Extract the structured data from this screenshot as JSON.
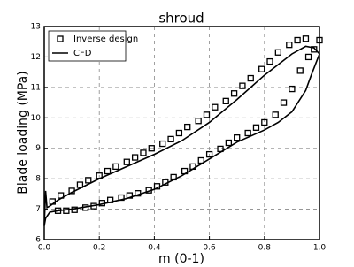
{
  "chart_data": {
    "type": "line",
    "title": "shroud",
    "xlabel": "m (0-1)",
    "ylabel": "Blade loading (MPa)",
    "xlim": [
      0,
      1
    ],
    "ylim": [
      6,
      13
    ],
    "xticks": [
      {
        "value": 0,
        "label": "0.0"
      },
      0.2,
      0.4,
      0.6,
      0.8,
      {
        "value": 1,
        "label": "1.0"
      }
    ],
    "yticks": [
      6,
      7,
      8,
      9,
      10,
      11,
      12,
      13
    ],
    "grid": true,
    "legend": "upper left",
    "series": [
      {
        "name": "Inverse design",
        "color": "#000000",
        "marker": "square",
        "x": [
          0.03,
          0.06,
          0.1,
          0.13,
          0.16,
          0.2,
          0.23,
          0.26,
          0.3,
          0.33,
          0.36,
          0.39,
          0.43,
          0.46,
          0.49,
          0.52,
          0.56,
          0.59,
          0.62,
          0.66,
          0.69,
          0.72,
          0.75,
          0.79,
          0.82,
          0.85,
          0.89,
          0.92,
          0.95,
          0.98,
          1.0,
          0.05,
          0.08,
          0.11,
          0.15,
          0.18,
          0.21,
          0.24,
          0.28,
          0.31,
          0.34,
          0.38,
          0.41,
          0.44,
          0.47,
          0.51,
          0.54,
          0.57,
          0.6,
          0.64,
          0.67,
          0.7,
          0.74,
          0.77,
          0.8,
          0.84,
          0.87,
          0.9,
          0.93,
          0.96
        ],
        "values": [
          7.25,
          7.45,
          7.6,
          7.8,
          7.95,
          8.1,
          8.25,
          8.4,
          8.55,
          8.7,
          8.85,
          9.0,
          9.15,
          9.3,
          9.5,
          9.7,
          9.9,
          10.1,
          10.35,
          10.55,
          10.8,
          11.05,
          11.3,
          11.6,
          11.85,
          12.15,
          12.4,
          12.55,
          12.6,
          12.25,
          12.55,
          6.95,
          6.95,
          6.98,
          7.05,
          7.1,
          7.2,
          7.3,
          7.38,
          7.45,
          7.52,
          7.62,
          7.75,
          7.88,
          8.05,
          8.25,
          8.4,
          8.6,
          8.8,
          8.98,
          9.18,
          9.35,
          9.5,
          9.68,
          9.85,
          10.1,
          10.5,
          10.95,
          11.55,
          12.0
        ]
      },
      {
        "name": "CFD",
        "color": "#000000",
        "x": [
          0,
          0.005,
          0.01,
          0.02,
          0.05,
          0.1,
          0.2,
          0.3,
          0.4,
          0.5,
          0.6,
          0.7,
          0.8,
          0.9,
          0.95,
          0.98,
          1.0,
          0.97,
          0.95,
          0.9,
          0.85,
          0.8,
          0.7,
          0.6,
          0.5,
          0.4,
          0.3,
          0.2,
          0.1,
          0.05,
          0.02,
          0.005,
          0
        ],
        "values": [
          6.45,
          7.6,
          7.05,
          7.1,
          7.3,
          7.55,
          8.0,
          8.4,
          8.8,
          9.25,
          9.85,
          10.6,
          11.4,
          12.1,
          12.35,
          12.3,
          12.1,
          11.4,
          10.9,
          10.2,
          9.85,
          9.6,
          9.2,
          8.65,
          8.1,
          7.65,
          7.35,
          7.15,
          7.0,
          6.95,
          6.9,
          6.7,
          6.45
        ]
      }
    ]
  }
}
